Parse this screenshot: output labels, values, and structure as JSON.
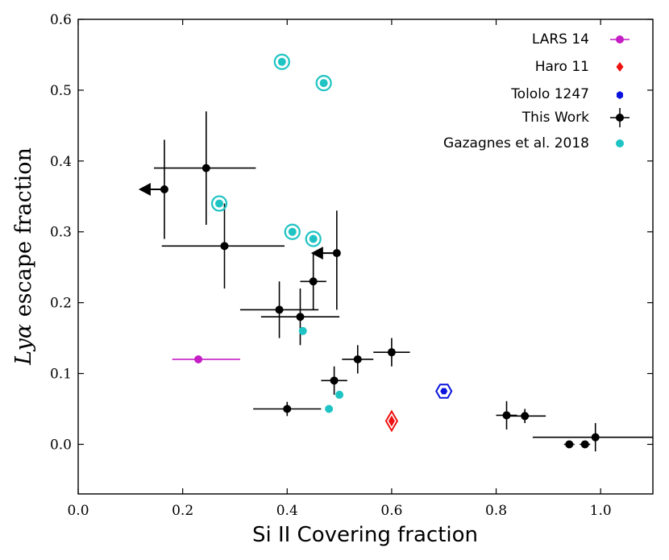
{
  "chart_data": {
    "type": "scatter",
    "xlabel": "Si II Covering fraction",
    "ylabel_prefix": "Ly",
    "ylabel_alpha": "α",
    "ylabel_suffix": " escape fraction",
    "xlim": [
      0.0,
      1.1
    ],
    "ylim": [
      -0.07,
      0.6
    ],
    "xticks": [
      0.0,
      0.2,
      0.4,
      0.6,
      0.8,
      1.0
    ],
    "yticks": [
      0.0,
      0.1,
      0.2,
      0.3,
      0.4,
      0.5,
      0.6
    ],
    "xtick_labels": [
      "0.0",
      "0.2",
      "0.4",
      "0.6",
      "0.8",
      "1.0"
    ],
    "ytick_labels": [
      "0.0",
      "0.1",
      "0.2",
      "0.3",
      "0.4",
      "0.5",
      "0.6"
    ],
    "legend_location": "top-right",
    "colors": {
      "this_work": "#000000",
      "gazagnes": "#1fc3c3",
      "lars": "#c41ec4",
      "haro": "#ee1111",
      "tololo": "#0a14dd"
    },
    "series": [
      {
        "name": "LARS 14",
        "marker": "circle",
        "points": [
          {
            "x": 0.23,
            "y": 0.12,
            "xerr": [
              0.05,
              0.08
            ]
          }
        ]
      },
      {
        "name": "Haro 11",
        "marker": "diamond",
        "points": [
          {
            "x": 0.6,
            "y": 0.033
          }
        ]
      },
      {
        "name": "Tololo 1247",
        "marker": "hexagon",
        "points": [
          {
            "x": 0.7,
            "y": 0.075
          }
        ]
      },
      {
        "name": "This Work",
        "marker": "circle",
        "points": [
          {
            "x": 0.245,
            "y": 0.39,
            "xerr": [
              0.1,
              0.095
            ],
            "yerr": [
              0.08,
              0.08
            ]
          },
          {
            "x": 0.165,
            "y": 0.36,
            "yerr": [
              0.07,
              0.07
            ],
            "upper_limit_x": true
          },
          {
            "x": 0.28,
            "y": 0.28,
            "xerr": [
              0.12,
              0.115
            ],
            "yerr": [
              0.06,
              0.06
            ]
          },
          {
            "x": 0.495,
            "y": 0.27,
            "yerr": [
              0.08,
              0.06
            ],
            "upper_limit_x": true
          },
          {
            "x": 0.45,
            "y": 0.23,
            "xerr": [
              0.025,
              0.025
            ],
            "yerr": [
              0.04,
              0.04
            ]
          },
          {
            "x": 0.385,
            "y": 0.19,
            "xerr": [
              0.075,
              0.075
            ],
            "yerr": [
              0.04,
              0.04
            ]
          },
          {
            "x": 0.425,
            "y": 0.18,
            "xerr": [
              0.075,
              0.075
            ],
            "yerr": [
              0.04,
              0.04
            ]
          },
          {
            "x": 0.6,
            "y": 0.13,
            "xerr": [
              0.035,
              0.035
            ],
            "yerr": [
              0.02,
              0.02
            ]
          },
          {
            "x": 0.535,
            "y": 0.12,
            "xerr": [
              0.03,
              0.03
            ],
            "yerr": [
              0.02,
              0.02
            ]
          },
          {
            "x": 0.49,
            "y": 0.09,
            "xerr": [
              0.025,
              0.025
            ],
            "yerr": [
              0.02,
              0.02
            ]
          },
          {
            "x": 0.4,
            "y": 0.05,
            "xerr": [
              0.065,
              0.065
            ],
            "yerr": [
              0.01,
              0.01
            ]
          },
          {
            "x": 0.82,
            "y": 0.041,
            "xerr": [
              0.02,
              0.02
            ],
            "yerr": [
              0.02,
              0.02
            ]
          },
          {
            "x": 0.855,
            "y": 0.04,
            "xerr": [
              0.04,
              0.04
            ],
            "yerr": [
              0.01,
              0.01
            ]
          },
          {
            "x": 0.94,
            "y": 0.0,
            "xerr": [
              0.01,
              0.01
            ]
          },
          {
            "x": 0.97,
            "y": 0.0,
            "xerr": [
              0.01,
              0.01
            ]
          },
          {
            "x": 0.99,
            "y": 0.01,
            "xerr": [
              0.12,
              0.12
            ],
            "yerr": [
              0.02,
              0.02
            ]
          }
        ]
      },
      {
        "name": "Gazagnes et al. 2018",
        "marker": "circle",
        "points": [
          {
            "x": 0.39,
            "y": 0.54,
            "ring": true
          },
          {
            "x": 0.47,
            "y": 0.51,
            "ring": true
          },
          {
            "x": 0.27,
            "y": 0.34,
            "ring": true
          },
          {
            "x": 0.41,
            "y": 0.3,
            "ring": true
          },
          {
            "x": 0.45,
            "y": 0.29,
            "ring": true
          },
          {
            "x": 0.43,
            "y": 0.16
          },
          {
            "x": 0.5,
            "y": 0.07
          },
          {
            "x": 0.48,
            "y": 0.05
          }
        ]
      }
    ]
  }
}
